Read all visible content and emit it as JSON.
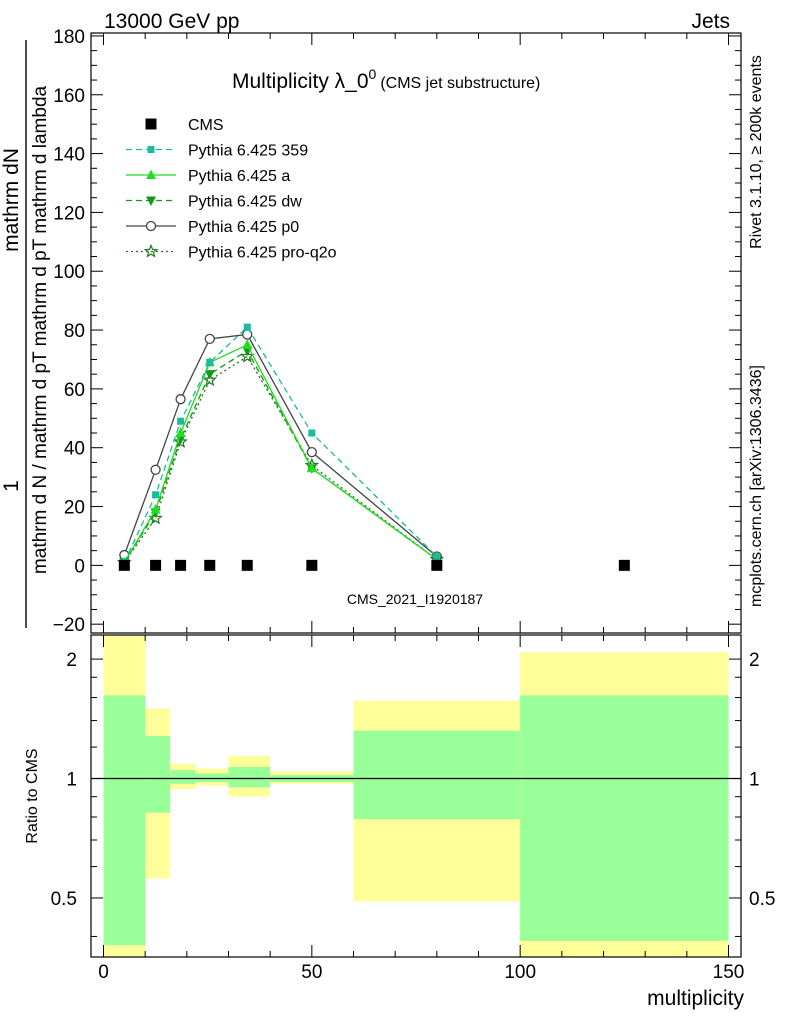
{
  "header": {
    "left": "13000 GeV pp",
    "right": "Jets"
  },
  "side_labels": {
    "rivet": "Rivet 3.1.10, ≥ 200k events",
    "mcplots": "mcplots.cern.ch [arXiv:1306.3436]"
  },
  "watermark": "CMS_2021_I1920187",
  "chart_data": [
    {
      "type": "line",
      "title": "Multiplicity λ_0",
      "title_sup": "0",
      "subtitle": "(CMS jet substructure)",
      "ylabel_numerator": "mathrm dN",
      "ylabel_one": "1",
      "ylabel_denominator": "mathrm d N / mathrm d pT mathrm d pT mathrm d lambda",
      "xlim": [
        -3,
        153
      ],
      "ylim": [
        -23,
        181
      ],
      "yticks": [
        -20,
        0,
        20,
        40,
        60,
        80,
        100,
        120,
        140,
        160,
        180
      ],
      "ytick_labels": [
        "−20",
        "0",
        "20",
        "40",
        "60",
        "80",
        "100",
        "120",
        "140",
        "160",
        "180"
      ],
      "legend_position": "top-left",
      "x": [
        5,
        12.5,
        18.5,
        25.5,
        34.5,
        50,
        80
      ],
      "series": [
        {
          "name": "CMS",
          "color": "#000000",
          "marker": "square",
          "style": "none",
          "x": [
            5,
            12.5,
            18.5,
            25.5,
            34.5,
            50,
            80,
            125
          ],
          "values": [
            0,
            0,
            0,
            0,
            0,
            0,
            0,
            0
          ]
        },
        {
          "name": "Pythia 6.425 359",
          "color": "#1abc9c",
          "marker": "small-square",
          "style": "dashed",
          "values": [
            1,
            24,
            49,
            69,
            81,
            45,
            3
          ]
        },
        {
          "name": "Pythia 6.425 a",
          "color": "#22dd22",
          "marker": "triangle-up",
          "style": "solid",
          "values": [
            1,
            19,
            45,
            69,
            75,
            33,
            2
          ]
        },
        {
          "name": "Pythia 6.425 dw",
          "color": "#119911",
          "marker": "triangle-down",
          "style": "dashed",
          "values": [
            1,
            18,
            43,
            65,
            73,
            33,
            2
          ]
        },
        {
          "name": "Pythia 6.425 p0",
          "color": "#444444",
          "marker": "open-circle",
          "style": "solid",
          "values": [
            3.5,
            32.5,
            56.5,
            77,
            78.5,
            38.5,
            3
          ]
        },
        {
          "name": "Pythia 6.425 pro-q2o",
          "color": "#227722",
          "marker": "star",
          "style": "dotted",
          "values": [
            1,
            16,
            42,
            63,
            71,
            34,
            2
          ]
        }
      ]
    },
    {
      "type": "area",
      "ylabel": "Ratio to CMS",
      "xlabel": "multiplicity",
      "xlim": [
        -3,
        153
      ],
      "ylim": [
        0.355,
        2.3
      ],
      "log_y": true,
      "xticks": [
        0,
        50,
        100,
        150
      ],
      "xtick_labels": [
        "0",
        "50",
        "100",
        "150"
      ],
      "yticks": [
        0.5,
        1,
        2
      ],
      "ytick_labels": [
        "0.5",
        "1",
        "2"
      ],
      "reference_line": 1,
      "bands": [
        {
          "x_from": 0,
          "x_to": 10,
          "yellow": [
            0.355,
            2.3
          ],
          "green": [
            0.38,
            1.62
          ]
        },
        {
          "x_from": 10,
          "x_to": 16,
          "yellow": [
            0.56,
            1.5
          ],
          "green": [
            0.82,
            1.28
          ]
        },
        {
          "x_from": 16,
          "x_to": 22,
          "yellow": [
            0.94,
            1.09
          ],
          "green": [
            0.97,
            1.05
          ]
        },
        {
          "x_from": 22,
          "x_to": 30,
          "yellow": [
            0.96,
            1.06
          ],
          "green": [
            0.98,
            1.03
          ]
        },
        {
          "x_from": 30,
          "x_to": 40,
          "yellow": [
            0.9,
            1.14
          ],
          "green": [
            0.95,
            1.07
          ]
        },
        {
          "x_from": 40,
          "x_to": 60,
          "yellow": [
            0.97,
            1.04
          ],
          "green": [
            0.98,
            1.02
          ]
        },
        {
          "x_from": 60,
          "x_to": 100,
          "yellow": [
            0.49,
            1.57
          ],
          "green": [
            0.79,
            1.32
          ]
        },
        {
          "x_from": 100,
          "x_to": 150,
          "yellow": [
            0.355,
            2.08
          ],
          "green": [
            0.39,
            1.62
          ]
        }
      ]
    }
  ]
}
